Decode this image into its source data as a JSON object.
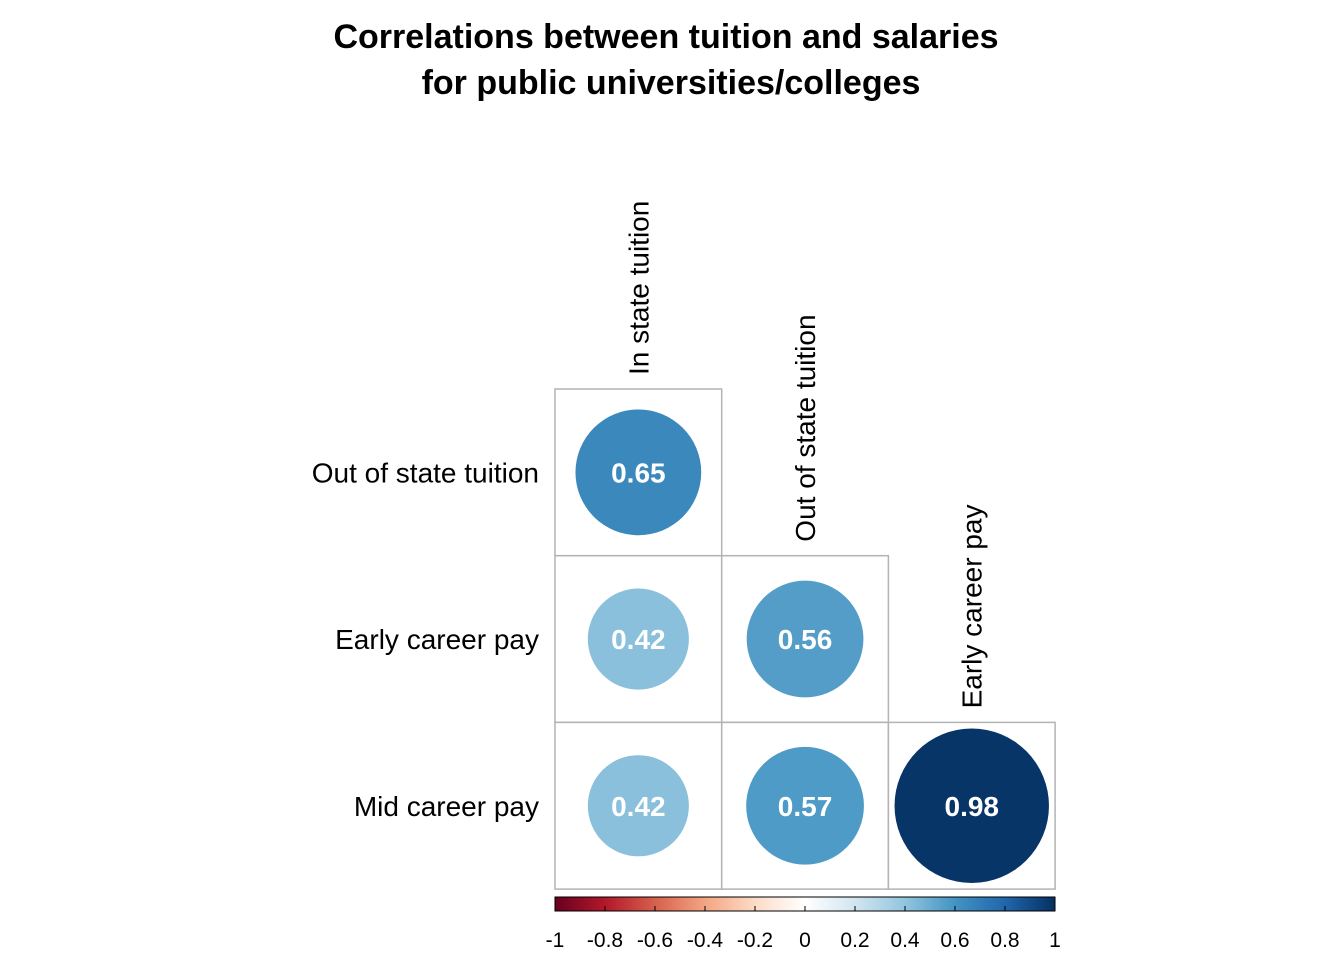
{
  "chart_data": {
    "type": "heatmap",
    "subtype": "correlation-matrix-lower-circles",
    "title": [
      "Correlations between tuition and salaries",
      "for public universities/colleges"
    ],
    "row_labels": [
      "Out of state tuition",
      "Early career pay",
      "Mid career pay"
    ],
    "col_labels": [
      "In state tuition",
      "Out of state tuition",
      "Early career pay"
    ],
    "matrix": [
      [
        0.65,
        null,
        null
      ],
      [
        0.42,
        0.56,
        null
      ],
      [
        0.42,
        0.57,
        0.98
      ]
    ],
    "value_labels": [
      [
        "0.65",
        "",
        ""
      ],
      [
        "0.42",
        "0.56",
        ""
      ],
      [
        "0.42",
        "0.57",
        "0.98"
      ]
    ],
    "color_scale": {
      "range": [
        -1,
        1
      ],
      "stops": [
        "#67001F",
        "#B2182B",
        "#D6604D",
        "#F4A582",
        "#FDDBC7",
        "#FFFFFF",
        "#D1E5F0",
        "#92C5DE",
        "#4393C3",
        "#2166AC",
        "#053061"
      ],
      "ticks": [
        -1,
        -0.8,
        -0.6,
        -0.4,
        -0.2,
        0,
        0.2,
        0.4,
        0.6,
        0.8,
        1
      ],
      "tick_labels": [
        "-1",
        "-0.8",
        "-0.6",
        "-0.4",
        "-0.2",
        "0",
        "0.2",
        "0.4",
        "0.6",
        "0.8",
        "1"
      ],
      "placement": "bottom"
    },
    "grid": true
  }
}
